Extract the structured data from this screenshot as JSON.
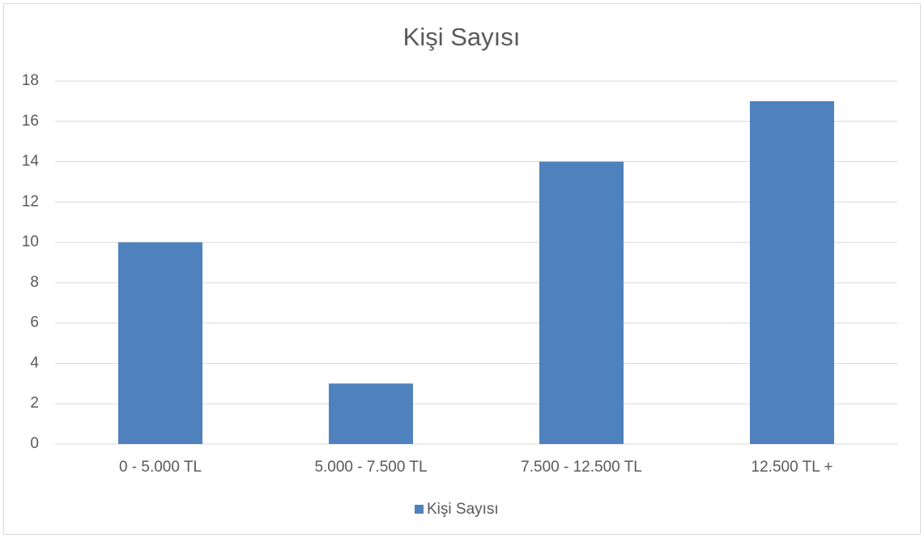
{
  "chart_data": {
    "type": "bar",
    "title": "Kişi Sayısı",
    "categories": [
      "0 - 5.000 TL",
      "5.000 - 7.500 TL",
      "7.500 - 12.500 TL",
      "12.500 TL +"
    ],
    "series": [
      {
        "name": "Kişi Sayısı",
        "color": "#4f81bd",
        "values": [
          10,
          3,
          14,
          17
        ]
      }
    ],
    "ylim": [
      0,
      18
    ],
    "yticks": [
      0,
      2,
      4,
      6,
      8,
      10,
      12,
      14,
      16,
      18
    ],
    "grid": true,
    "legend": "bottom"
  }
}
